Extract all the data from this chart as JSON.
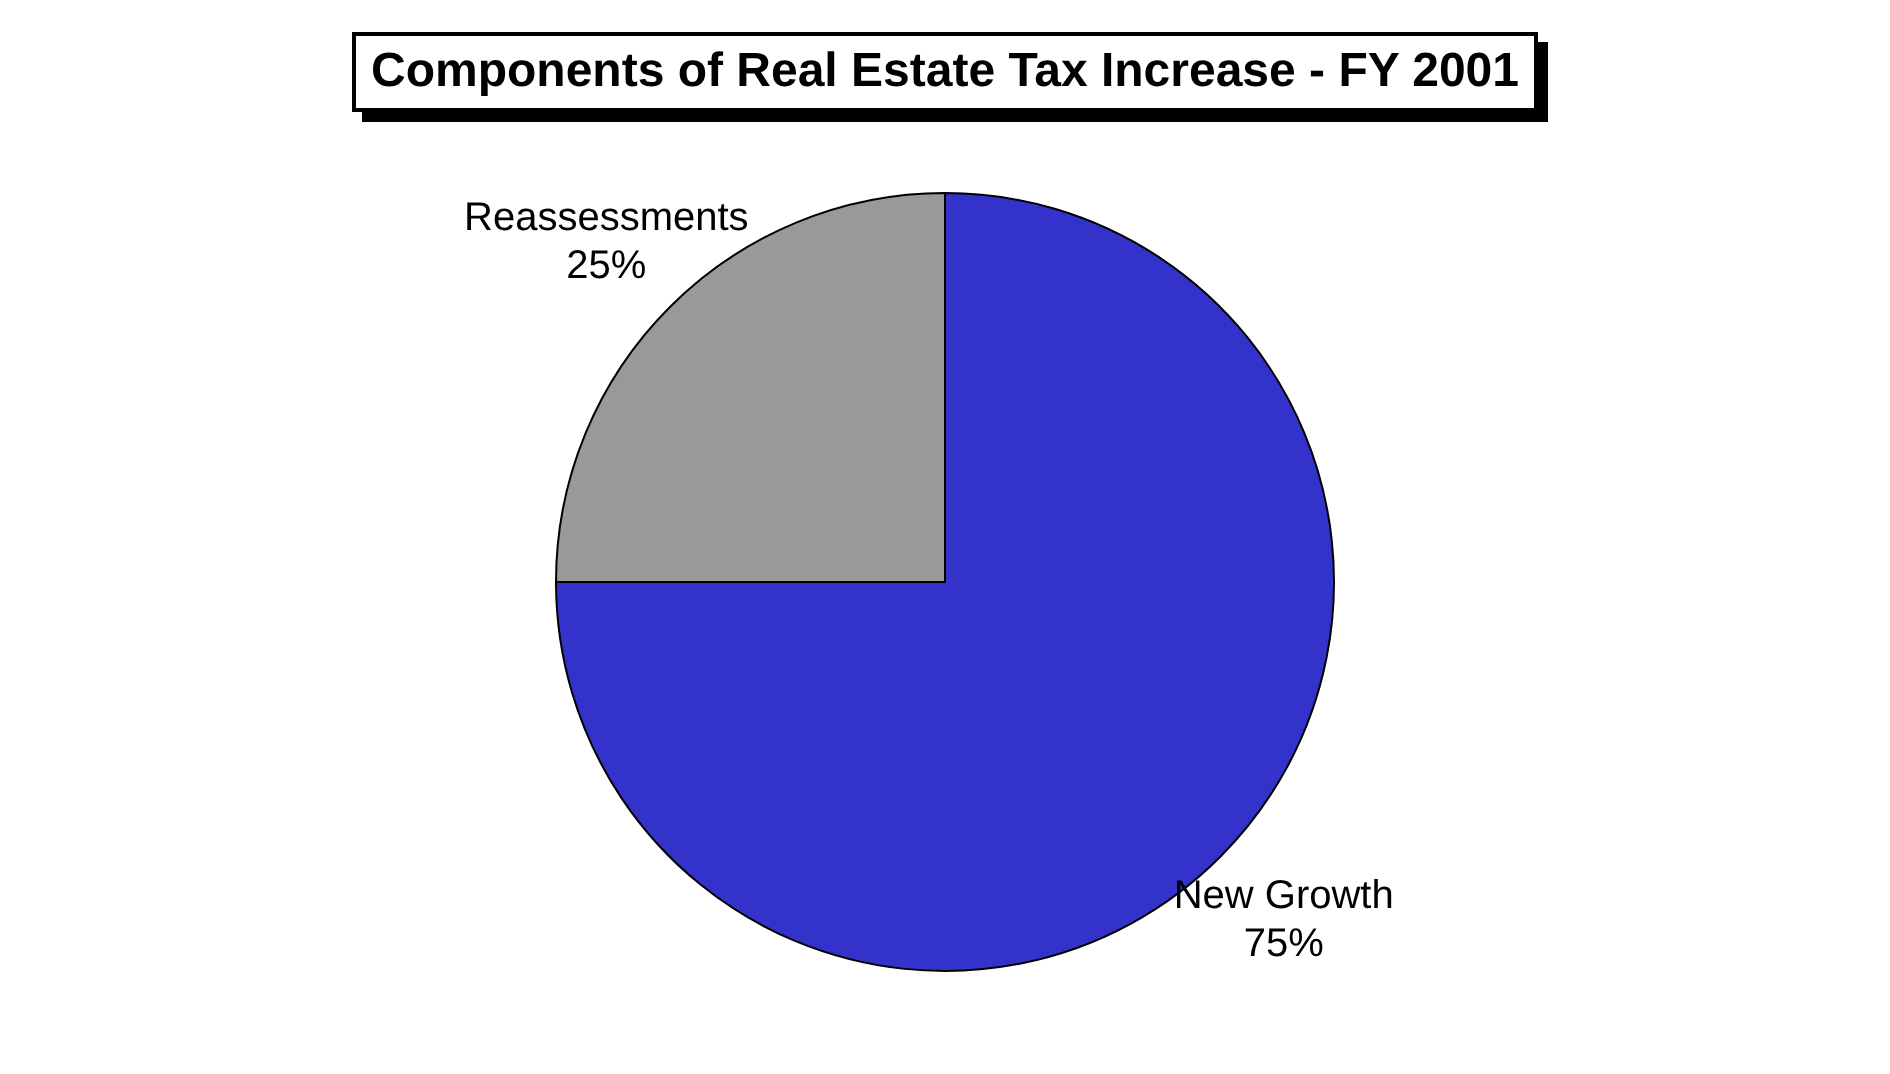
{
  "chart_data": {
    "type": "pie",
    "title": "Components of Real Estate Tax Increase - FY 2001",
    "categories": [
      "New Growth",
      "Reassessments"
    ],
    "values": [
      75,
      25
    ],
    "value_labels": [
      "75%",
      "25%"
    ],
    "colors": [
      "#3333cc",
      "#999999"
    ],
    "legend": false
  }
}
